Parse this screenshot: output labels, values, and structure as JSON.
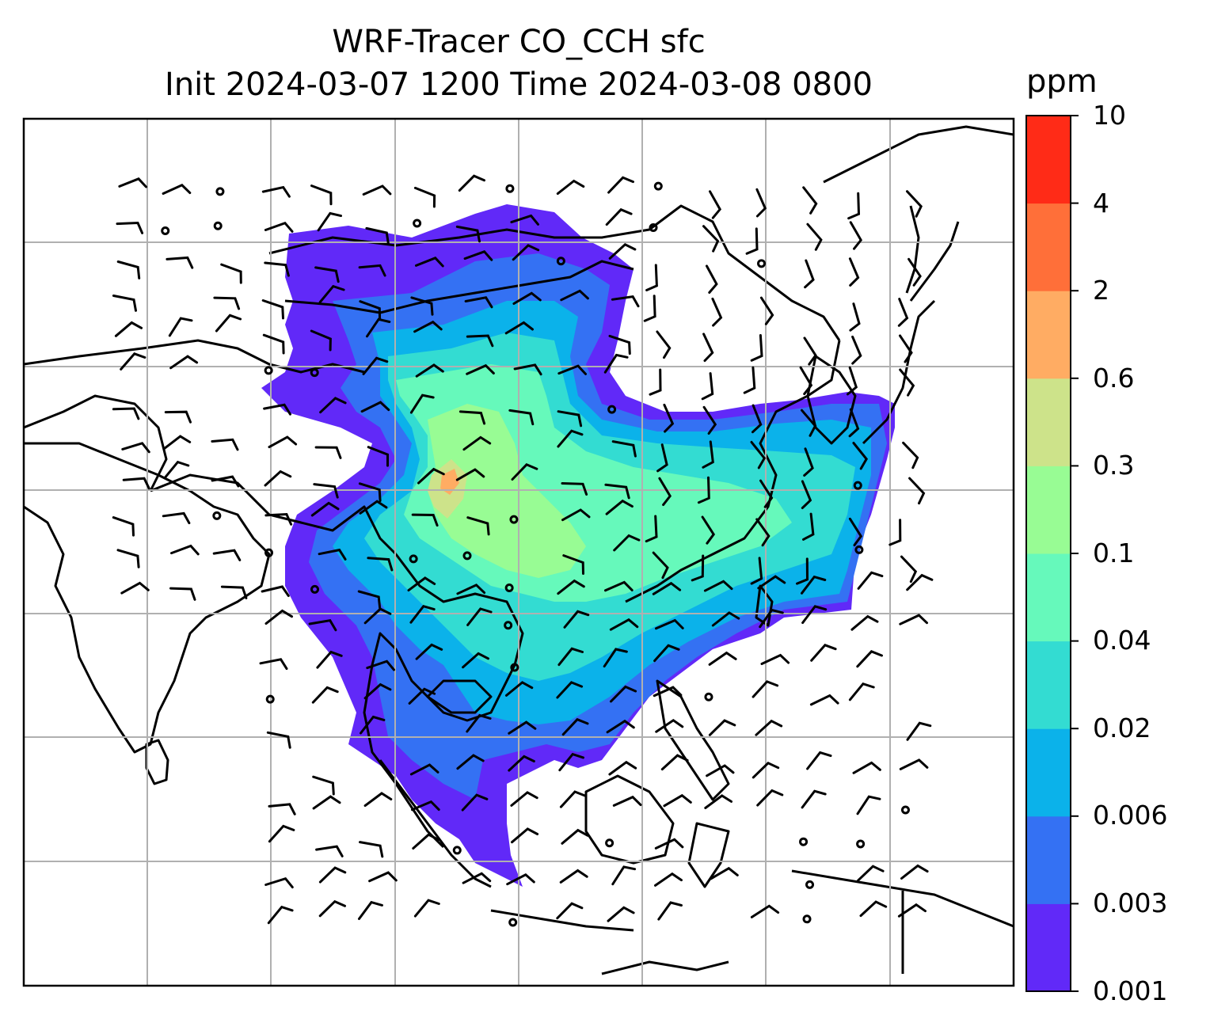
{
  "title_line1": "WRF-Tracer CO_CCH sfc",
  "title_line2": "Init 2024-03-07 1200 Time 2024-03-08 0800",
  "colorbar": {
    "unit": "ppm",
    "levels": [
      "0.001",
      "0.003",
      "0.006",
      "0.02",
      "0.04",
      "0.1",
      "0.3",
      "0.6",
      "2",
      "4",
      "10"
    ],
    "colors": [
      "#6129f8",
      "#3471f3",
      "#0bb2ea",
      "#33dcd2",
      "#66f9bb",
      "#98fc94",
      "#cde38a",
      "#ffac63",
      "#ff6f39",
      "#ff2b17"
    ]
  },
  "map": {
    "gridlines": "on",
    "coastlines": "black",
    "wind_barbs": "black",
    "background": "#ffffff"
  }
}
